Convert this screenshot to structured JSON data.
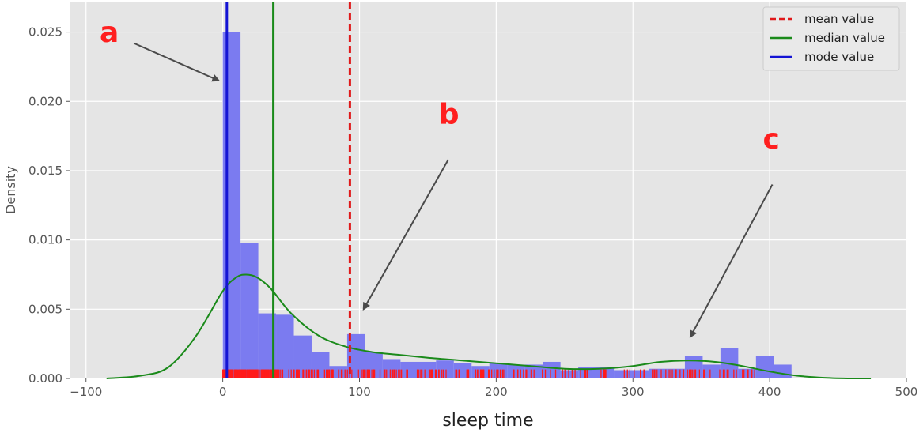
{
  "chart_data": {
    "type": "histogram",
    "xlabel": "sleep time",
    "ylabel": "Density",
    "xlim": [
      -112,
      500
    ],
    "ylim": [
      0,
      0.0272
    ],
    "x_ticks": [
      -100,
      0,
      100,
      200,
      300,
      400,
      500
    ],
    "x_tick_labels": [
      "−100",
      "0",
      "100",
      "200",
      "300",
      "400",
      "500"
    ],
    "y_ticks": [
      0.0,
      0.005,
      0.01,
      0.015,
      0.02,
      0.025
    ],
    "y_tick_labels": [
      "0.000",
      "0.005",
      "0.010",
      "0.015",
      "0.020",
      "0.025"
    ],
    "grid": true,
    "background": "#e5e5e5",
    "histogram": {
      "color": "#7b7bf0",
      "bin_width": 13,
      "bins_start": 0,
      "density": [
        0.025,
        0.0098,
        0.0047,
        0.0046,
        0.0031,
        0.0019,
        0.0009,
        0.0032,
        0.0019,
        0.0014,
        0.0012,
        0.0012,
        0.0013,
        0.0011,
        0.0009,
        0.0011,
        0.001,
        0.001,
        0.0012,
        0.0006,
        0.0008,
        0.0008,
        0.0006,
        0.0006,
        0.0007,
        0.0007,
        0.0016,
        0.001,
        0.0022,
        0.0007,
        0.0016,
        0.001
      ]
    },
    "kde": {
      "color": "#1a8a1a",
      "x": [
        -85,
        -60,
        -40,
        -20,
        0,
        10,
        17,
        25,
        35,
        50,
        70,
        90,
        110,
        130,
        150,
        175,
        200,
        225,
        250,
        275,
        300,
        320,
        340,
        360,
        380,
        400,
        420,
        440,
        460,
        474
      ],
      "y": [
        0.0,
        0.0002,
        0.0008,
        0.003,
        0.0063,
        0.0073,
        0.0075,
        0.0073,
        0.0065,
        0.0047,
        0.0031,
        0.0023,
        0.0019,
        0.0017,
        0.0015,
        0.0013,
        0.0011,
        0.0009,
        0.0007,
        0.0007,
        0.0009,
        0.0012,
        0.0013,
        0.0012,
        0.0009,
        0.0005,
        0.0002,
        5e-05,
        0.0,
        0.0
      ]
    },
    "vlines": [
      {
        "name": "mean value",
        "x": 93,
        "color": "#e0191a",
        "dashed": true
      },
      {
        "name": "median value",
        "x": 37,
        "color": "#1a8a1a",
        "dashed": false
      },
      {
        "name": "mode value",
        "x": 3,
        "color": "#1414d4",
        "dashed": false
      }
    ],
    "rug": {
      "color": "#ff1a1a",
      "x_range": [
        0,
        390
      ],
      "height": 0.00065
    },
    "legend": {
      "placement": "top-right",
      "entries": [
        "mean value",
        "median value",
        "mode value"
      ]
    },
    "annotations": [
      {
        "label": "a",
        "text_at": [
          -90,
          0.0243
        ],
        "arrow_from": [
          -65,
          0.0242
        ],
        "arrow_to": [
          -3,
          0.0215
        ]
      },
      {
        "label": "b",
        "text_at": [
          158,
          0.0184
        ],
        "arrow_from": [
          165,
          0.0158
        ],
        "arrow_to": [
          103,
          0.005
        ]
      },
      {
        "label": "c",
        "text_at": [
          395,
          0.0166
        ],
        "arrow_from": [
          402,
          0.014
        ],
        "arrow_to": [
          342,
          0.003
        ]
      }
    ]
  }
}
